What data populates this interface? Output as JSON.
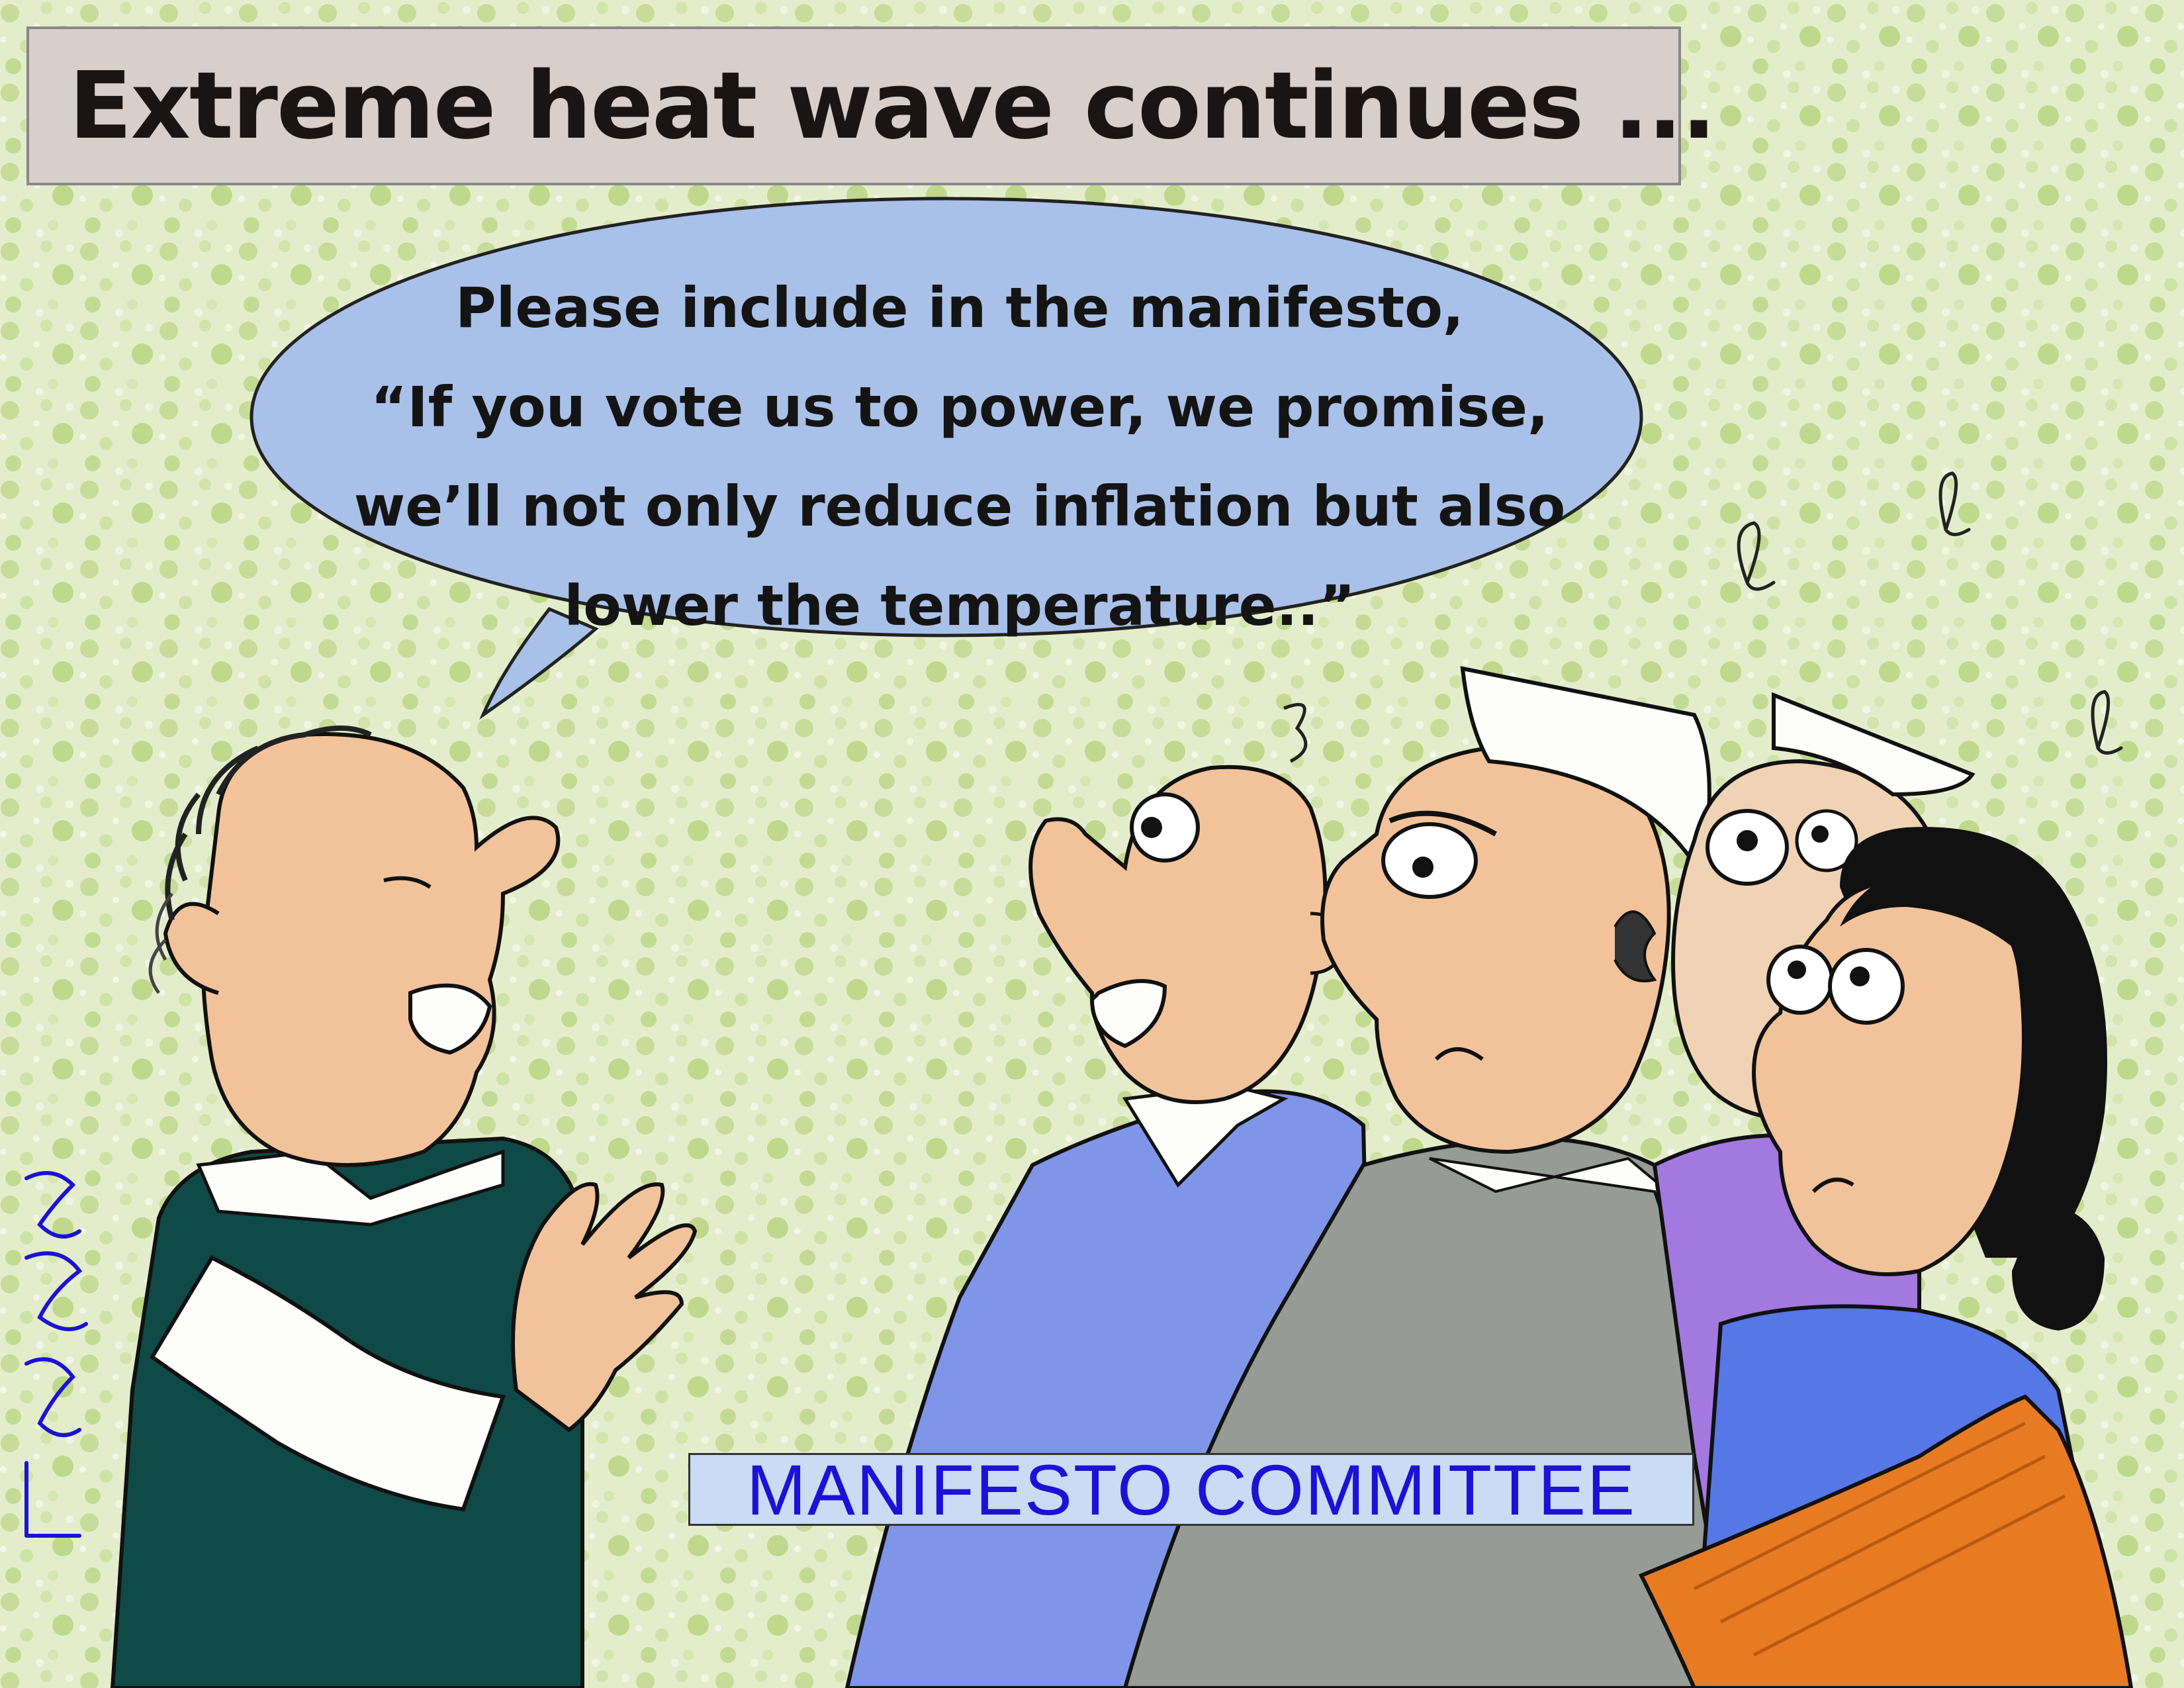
{
  "title": "Extreme heat wave continues ...",
  "speech": {
    "lines": [
      "Please include in the manifesto,",
      "“If you vote us to power, we promise,",
      "we’ll not only reduce inflation but also",
      "lower the temperature..”"
    ]
  },
  "banner": "MANIFESTO COMMITTEE",
  "colors": {
    "background": "#e2ecc8",
    "speech_bubble": "#a9c1e8",
    "title_box": "#d8cfcb",
    "banner_text": "#1b12d6",
    "skin": "#f2c39b",
    "dark_vest": "#0f4a47",
    "blue_sweater": "#7f95e8",
    "grey_vest": "#969b96",
    "purple_kurta": "#a379e0",
    "orange_saree": "#e87b22",
    "blue_blouse": "#5677e6"
  }
}
